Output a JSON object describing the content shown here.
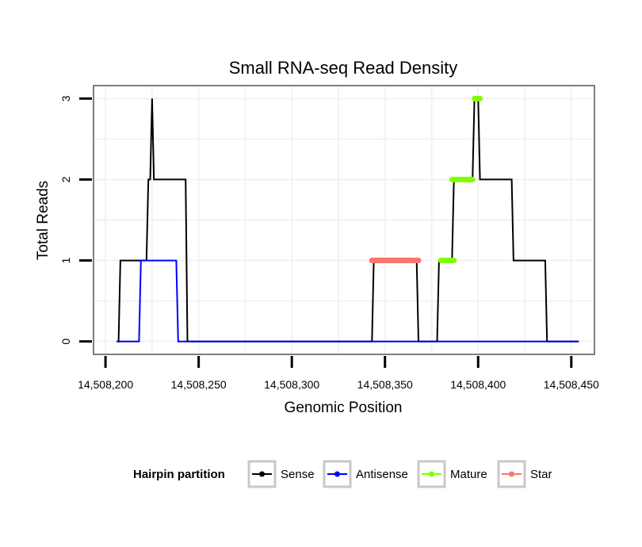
{
  "chart_data": {
    "type": "line",
    "title": "Small RNA-seq Read Density",
    "xlabel": "Genomic Position",
    "ylabel": "Total Reads",
    "xlim": [
      14508194,
      14508462
    ],
    "ylim": [
      -0.15,
      3.15
    ],
    "xticks": [
      14508200,
      14508250,
      14508300,
      14508350,
      14508400,
      14508450
    ],
    "xtick_labels": [
      "14,508,200",
      "14,508,250",
      "14,508,300",
      "14,508,350",
      "14,508,400",
      "14,508,450"
    ],
    "yticks": [
      0,
      1,
      2,
      3
    ],
    "ytick_labels": [
      "0",
      "1",
      "2",
      "3"
    ],
    "grid": true,
    "legend": {
      "title": "Hairpin partition",
      "position": "bottom",
      "entries": [
        "Sense",
        "Antisense",
        "Mature",
        "Star"
      ]
    },
    "series": [
      {
        "name": "Sense",
        "color": "#000000",
        "style": "line",
        "x": [
          14508206,
          14508207,
          14508208,
          14508222,
          14508223,
          14508224,
          14508225,
          14508226,
          14508243,
          14508244,
          14508250,
          14508343,
          14508344,
          14508367,
          14508368,
          14508378,
          14508379,
          14508386,
          14508387,
          14508397,
          14508398,
          14508399,
          14508400,
          14508401,
          14508418,
          14508419,
          14508436,
          14508437,
          14508454
        ],
        "y": [
          0,
          0,
          1,
          1,
          2,
          2,
          3,
          2,
          2,
          0,
          0,
          0,
          1,
          1,
          0,
          0,
          1,
          1,
          2,
          2,
          3,
          3,
          3,
          2,
          2,
          1,
          1,
          0,
          0
        ]
      },
      {
        "name": "Antisense",
        "color": "#0000ff",
        "style": "line",
        "x": [
          14508206,
          14508218,
          14508219,
          14508238,
          14508239,
          14508454
        ],
        "y": [
          0,
          0,
          1,
          1,
          0,
          0
        ]
      },
      {
        "name": "Mature",
        "color": "#7fff00",
        "style": "thick-segments",
        "x": [
          14508380,
          14508387,
          14508386,
          14508397,
          14508398,
          14508401
        ],
        "y": [
          1,
          1,
          2,
          2,
          3,
          3
        ]
      },
      {
        "name": "Star",
        "color": "#f8766d",
        "style": "thick-segments",
        "x": [
          14508343,
          14508368
        ],
        "y": [
          1,
          1
        ]
      }
    ]
  }
}
